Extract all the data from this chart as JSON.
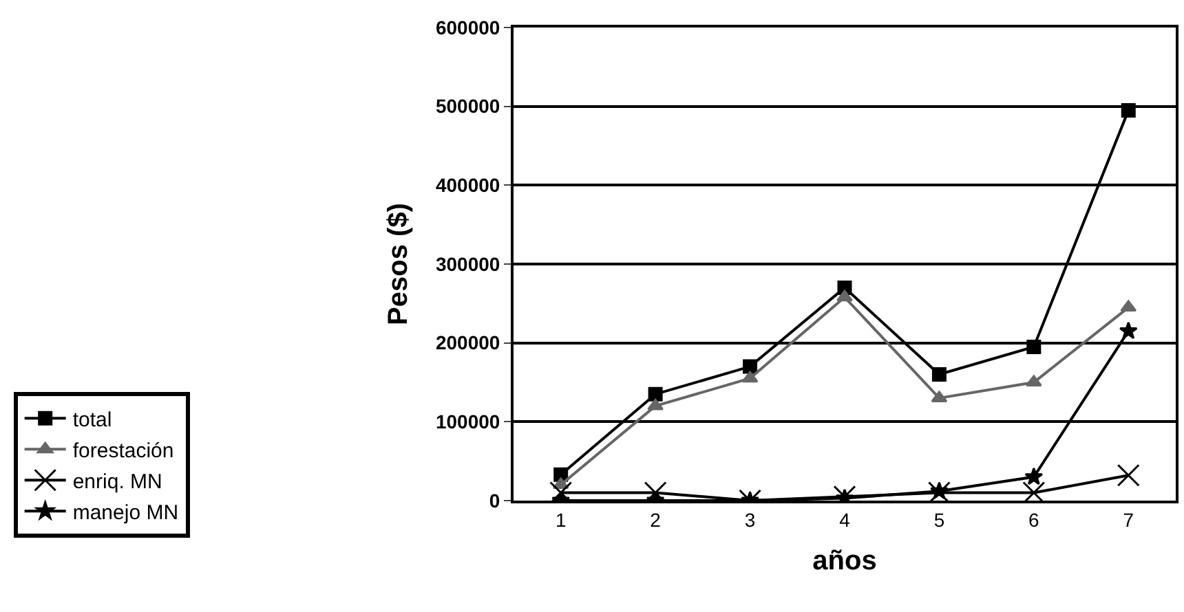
{
  "chart_data": {
    "type": "line",
    "xlabel": "años",
    "ylabel": "Pesos ($)",
    "categories": [
      "1",
      "2",
      "3",
      "4",
      "5",
      "6",
      "7"
    ],
    "series": [
      {
        "name": "total",
        "color": "#000000",
        "marker": "square",
        "values": [
          33000,
          135000,
          170000,
          270000,
          160000,
          195000,
          495000
        ]
      },
      {
        "name": "forestación",
        "color": "#666666",
        "marker": "triangle",
        "values": [
          20000,
          120000,
          155000,
          258000,
          130000,
          150000,
          245000
        ]
      },
      {
        "name": "enriq. MN",
        "color": "#000000",
        "marker": "cross",
        "values": [
          10000,
          10000,
          0,
          5000,
          10000,
          10000,
          32000
        ]
      },
      {
        "name": "manejo MN",
        "color": "#000000",
        "marker": "star",
        "values": [
          0,
          0,
          0,
          3000,
          12000,
          30000,
          215000
        ]
      }
    ],
    "ylim": [
      0,
      600000
    ],
    "yticks": [
      0,
      100000,
      200000,
      300000,
      400000,
      500000,
      600000
    ],
    "grid": "y",
    "legend": "left"
  }
}
